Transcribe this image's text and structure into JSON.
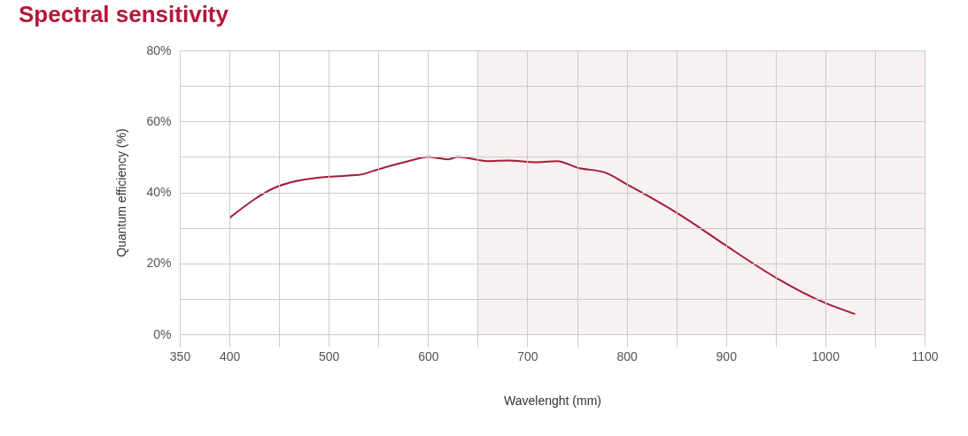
{
  "chart_data": {
    "type": "line",
    "title": "Spectral sensitivity",
    "xlabel": "Wavelenght (mm)",
    "ylabel": "Quantum efficiency (%)",
    "x": [
      400,
      450,
      500,
      530,
      550,
      580,
      600,
      620,
      630,
      660,
      680,
      710,
      730,
      750,
      780,
      800,
      820,
      850,
      870,
      900,
      950,
      1000,
      1030
    ],
    "series": [
      {
        "color": "#a51c3b",
        "values": [
          32.8,
          41.8,
          44.4,
          44.9,
          46.5,
          48.8,
          50,
          49.3,
          50,
          48.8,
          49,
          48.5,
          48.8,
          47,
          45.4,
          42.3,
          39.2,
          34.3,
          30.7,
          25,
          16,
          8.8,
          5.7
        ]
      }
    ],
    "xlim": [
      350,
      1100
    ],
    "xticks": [
      350,
      400,
      {
        "value": 450,
        "label": null
      },
      500,
      {
        "value": 550,
        "label": null
      },
      600,
      {
        "value": 650,
        "label": null
      },
      700,
      {
        "value": 750,
        "label": null
      },
      800,
      {
        "value": 850,
        "label": null
      },
      900,
      {
        "value": 950,
        "label": null
      },
      1000,
      {
        "value": 1050,
        "label": null
      },
      1100
    ],
    "ylim": [
      0,
      80
    ],
    "yticks": [
      {
        "value": 0,
        "label": "0%"
      },
      {
        "value": 10,
        "label": null
      },
      {
        "value": 20,
        "label": "20%"
      },
      {
        "value": 30,
        "label": null
      },
      {
        "value": 40,
        "label": "40%"
      },
      {
        "value": 50,
        "label": null
      },
      {
        "value": 60,
        "label": "60%"
      },
      {
        "value": 70,
        "label": null
      },
      {
        "value": 80,
        "label": "80%"
      }
    ],
    "bands": [
      {
        "axis": "x",
        "from": 650,
        "to": 1100,
        "color": "#f8f1f1"
      }
    ],
    "grid": true
  }
}
